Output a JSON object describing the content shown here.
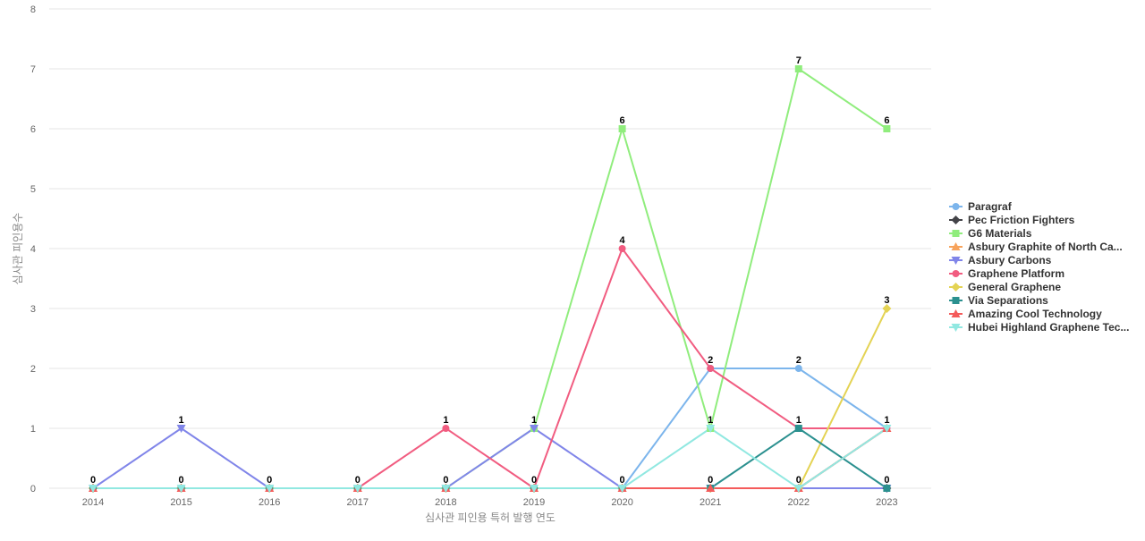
{
  "chart_data": {
    "type": "line",
    "title": "",
    "xlabel": "심사관 피인용 특허 발행 연도",
    "ylabel": "심사관 피인용수",
    "categories": [
      "2014",
      "2015",
      "2016",
      "2017",
      "2018",
      "2019",
      "2020",
      "2021",
      "2022",
      "2023"
    ],
    "ylim": [
      0,
      8
    ],
    "yticks": [
      0,
      1,
      2,
      3,
      4,
      5,
      6,
      7,
      8
    ],
    "grid": true,
    "legend_position": "right",
    "series": [
      {
        "name": "Paragraf",
        "color": "#7cb5ec",
        "marker": "circle",
        "values": [
          0,
          0,
          0,
          0,
          0,
          0,
          0,
          2,
          2,
          1
        ]
      },
      {
        "name": "Pec Friction Fighters",
        "color": "#434348",
        "marker": "diamond",
        "values": [
          0,
          0,
          0,
          0,
          0,
          0,
          0,
          0,
          0,
          0
        ]
      },
      {
        "name": "G6 Materials",
        "color": "#90ed7d",
        "marker": "square",
        "values": [
          0,
          0,
          0,
          0,
          0,
          1,
          6,
          1,
          7,
          6
        ]
      },
      {
        "name": "Asbury Graphite of North Ca...",
        "color": "#f7a35c",
        "marker": "triangle",
        "values": [
          0,
          0,
          0,
          0,
          0,
          0,
          0,
          0,
          0,
          1
        ]
      },
      {
        "name": "Asbury Carbons",
        "color": "#8085e9",
        "marker": "triangle-down",
        "values": [
          0,
          1,
          0,
          0,
          0,
          1,
          0,
          0,
          0,
          0
        ]
      },
      {
        "name": "Graphene Platform",
        "color": "#f15c80",
        "marker": "circle",
        "values": [
          0,
          0,
          0,
          0,
          1,
          0,
          4,
          2,
          1,
          1
        ]
      },
      {
        "name": "General Graphene",
        "color": "#e4d354",
        "marker": "diamond",
        "values": [
          0,
          0,
          0,
          0,
          0,
          0,
          0,
          0,
          0,
          3
        ]
      },
      {
        "name": "Via Separations",
        "color": "#2b908f",
        "marker": "square",
        "values": [
          0,
          0,
          0,
          0,
          0,
          0,
          0,
          0,
          1,
          0
        ]
      },
      {
        "name": "Amazing Cool Technology",
        "color": "#f45b5b",
        "marker": "triangle",
        "values": [
          0,
          0,
          0,
          0,
          0,
          0,
          0,
          0,
          0,
          1
        ]
      },
      {
        "name": "Hubei Highland Graphene Tec...",
        "color": "#91e8e1",
        "marker": "triangle-down",
        "values": [
          0,
          0,
          0,
          0,
          0,
          0,
          0,
          1,
          0,
          1
        ]
      }
    ],
    "data_labels": [
      {
        "x": "2014",
        "top": "0",
        "bottom": ""
      },
      {
        "x": "2015",
        "top": "1",
        "bottom": "0"
      },
      {
        "x": "2016",
        "top": "0",
        "bottom": ""
      },
      {
        "x": "2017",
        "top": "0",
        "bottom": ""
      },
      {
        "x": "2018",
        "top": "1",
        "bottom": "0"
      },
      {
        "x": "2019",
        "top": "1",
        "bottom": "0"
      },
      {
        "x": "2020",
        "top": "6",
        "bottom": "0",
        "extra": [
          {
            "text": "4",
            "y": 4
          }
        ]
      },
      {
        "x": "2021",
        "top": "2",
        "bottom": "0",
        "extra": [
          {
            "text": "1",
            "y": 1
          }
        ]
      },
      {
        "x": "2022",
        "top": "7",
        "bottom": "0",
        "extra": [
          {
            "text": "2",
            "y": 2
          },
          {
            "text": "1",
            "y": 1
          }
        ]
      },
      {
        "x": "2023",
        "top": "6",
        "bottom": "0",
        "extra": [
          {
            "text": "3",
            "y": 3
          },
          {
            "text": "1",
            "y": 1
          }
        ]
      }
    ]
  }
}
